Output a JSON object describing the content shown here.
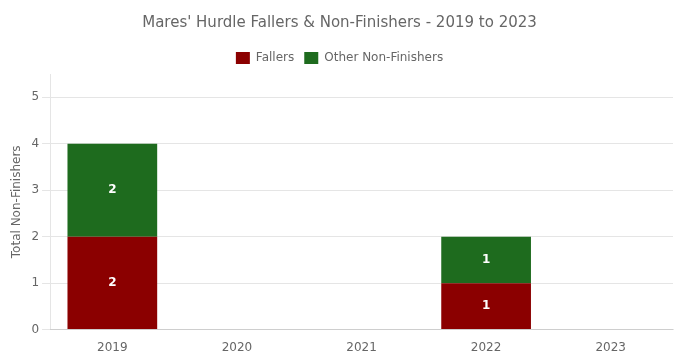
{
  "chart_data": {
    "type": "bar",
    "title": "Mares' Hurdle Fallers & Non-Finishers - 2019 to 2023",
    "categories": [
      "2019",
      "2020",
      "2021",
      "2022",
      "2023"
    ],
    "series": [
      {
        "name": "Fallers",
        "color": "#8B0000",
        "values": [
          2,
          0,
          0,
          1,
          0
        ]
      },
      {
        "name": "Other Non-Finishers",
        "color": "#1E6B1E",
        "values": [
          2,
          0,
          0,
          1,
          0
        ]
      }
    ],
    "stacked": true,
    "ylabel": "Total Non-Finishers",
    "ylim": [
      0,
      5.5
    ],
    "yticks": [
      0,
      1,
      2,
      3,
      4,
      5
    ],
    "grid": true,
    "legend": "top",
    "data_labels": true
  }
}
